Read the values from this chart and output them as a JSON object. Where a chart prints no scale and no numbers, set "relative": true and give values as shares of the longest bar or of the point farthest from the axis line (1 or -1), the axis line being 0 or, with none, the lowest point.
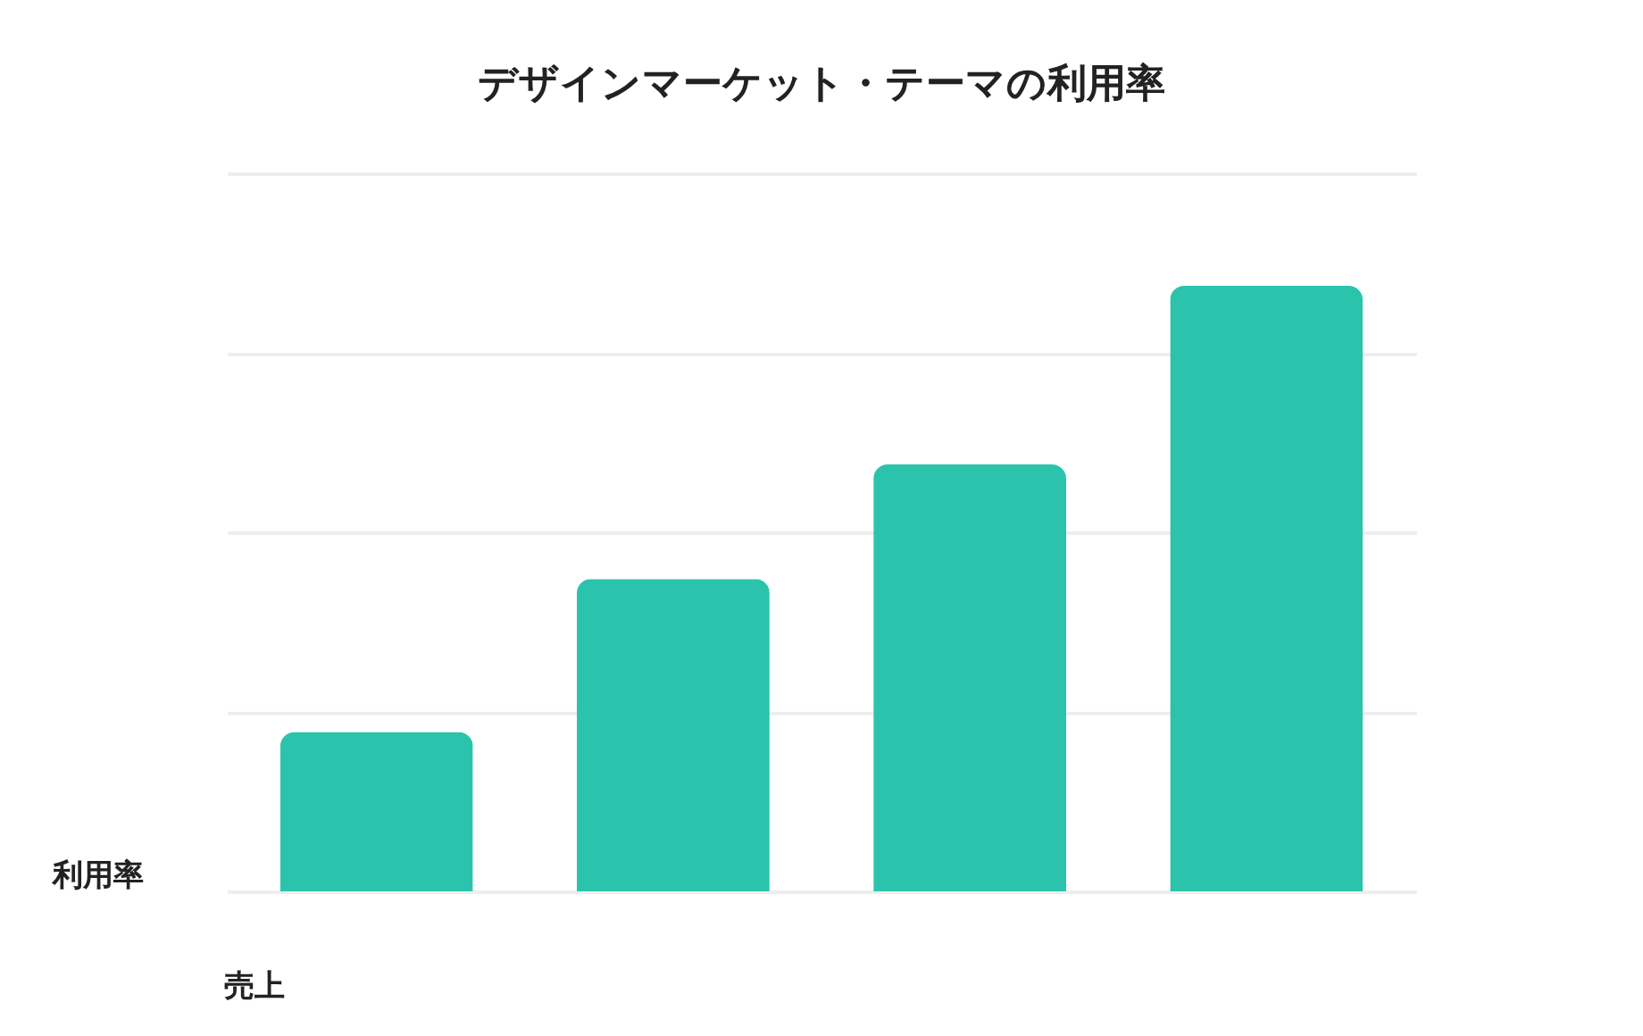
{
  "chart_data": {
    "type": "bar",
    "title": "デザインマーケット・テーマの利用率",
    "xlabel": "売上",
    "ylabel": "利用率",
    "categories": [
      null,
      null,
      null,
      null
    ],
    "values": [
      0.263,
      0.516,
      0.705,
      1.0
    ],
    "color": "#2cc3ad",
    "relative": true,
    "grid": "y"
  }
}
